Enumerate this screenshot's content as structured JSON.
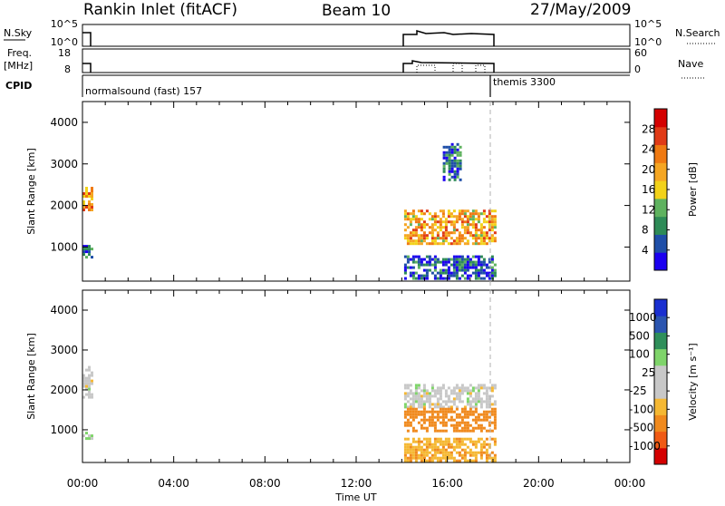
{
  "header": {
    "station": "Rankin Inlet (fitACF)",
    "beam": "Beam 10",
    "date": "27/May/2009"
  },
  "strip_labels": {
    "nsky": "N.Sky",
    "nsky_ticks": [
      "10^5",
      "10^0"
    ],
    "nsearch": "N.Search",
    "nsearch_ticks": [
      "10^5",
      "10^0"
    ],
    "freq": "Freq.",
    "freq_unit": "[MHz]",
    "freq_ticks": [
      "18",
      "8"
    ],
    "nave": "Nave",
    "nave_ticks": [
      "60",
      "0"
    ],
    "cpid": "CPID"
  },
  "cpid_segments": [
    {
      "label": "normalsound (fast) 157",
      "start_hour": 0
    },
    {
      "label": "themis 3300",
      "start_hour": 18
    }
  ],
  "colors": {
    "power_scale": [
      "#1b00f0",
      "#1f4fa8",
      "#2e8b57",
      "#5fb25f",
      "#f2d21a",
      "#f5a623",
      "#f07a12",
      "#e03a16",
      "#d40000"
    ],
    "velocity_scale": [
      "#d40000",
      "#f05a14",
      "#f08a1e",
      "#f5b833",
      "#c8c8c8",
      "#c8c8c8",
      "#7fd46a",
      "#2f8f5a",
      "#2b55b0",
      "#1a2fd0"
    ]
  },
  "chart_data": [
    {
      "type": "heatmap",
      "title": "Power",
      "xlabel": "",
      "ylabel": "Slant Range [km]",
      "xlim": [
        0,
        24
      ],
      "ylim": [
        180,
        4500
      ],
      "xticks": [
        "00:00",
        "04:00",
        "08:00",
        "12:00",
        "16:00",
        "20:00",
        "00:00"
      ],
      "yticks": [
        1000,
        2000,
        3000,
        4000
      ],
      "colorbar": {
        "label": "Power [dB]",
        "ticks": [
          4,
          8,
          12,
          16,
          20,
          24,
          28
        ],
        "range": [
          0,
          32
        ]
      },
      "series": [
        {
          "x_range": [
            0.0,
            0.4
          ],
          "y_range": [
            1900,
            2450
          ],
          "level": 20
        },
        {
          "x_range": [
            0.0,
            0.4
          ],
          "y_range": [
            780,
            1050
          ],
          "level": 8
        },
        {
          "x_range": [
            14.1,
            18.1
          ],
          "y_range": [
            1050,
            1900
          ],
          "level": 20
        },
        {
          "x_range": [
            14.1,
            18.1
          ],
          "y_range": [
            250,
            800
          ],
          "level": 6
        },
        {
          "x_range": [
            15.8,
            16.6
          ],
          "y_range": [
            2600,
            3500
          ],
          "level": 6
        }
      ]
    },
    {
      "type": "heatmap",
      "title": "Velocity",
      "xlabel": "Time UT",
      "ylabel": "Slant Range [km]",
      "xlim": [
        0,
        24
      ],
      "ylim": [
        180,
        4500
      ],
      "xticks": [
        "00:00",
        "04:00",
        "08:00",
        "12:00",
        "16:00",
        "20:00",
        "00:00"
      ],
      "yticks": [
        1000,
        2000,
        3000,
        4000
      ],
      "colorbar": {
        "label": "Velocity [m s⁻¹]",
        "ticks": [
          1000,
          500,
          100,
          25,
          -25,
          -100,
          -500,
          -1000
        ]
      },
      "series": [
        {
          "x_range": [
            0.0,
            0.4
          ],
          "y_range": [
            1750,
            2600
          ],
          "level": 0
        },
        {
          "x_range": [
            0.0,
            0.4
          ],
          "y_range": [
            760,
            950
          ],
          "level": 30
        },
        {
          "x_range": [
            14.1,
            18.1
          ],
          "y_range": [
            1600,
            2150
          ],
          "level": 0
        },
        {
          "x_range": [
            14.1,
            18.1
          ],
          "y_range": [
            950,
            1550
          ],
          "level": -300
        },
        {
          "x_range": [
            14.1,
            18.1
          ],
          "y_range": [
            250,
            800
          ],
          "level": -80
        }
      ]
    }
  ]
}
